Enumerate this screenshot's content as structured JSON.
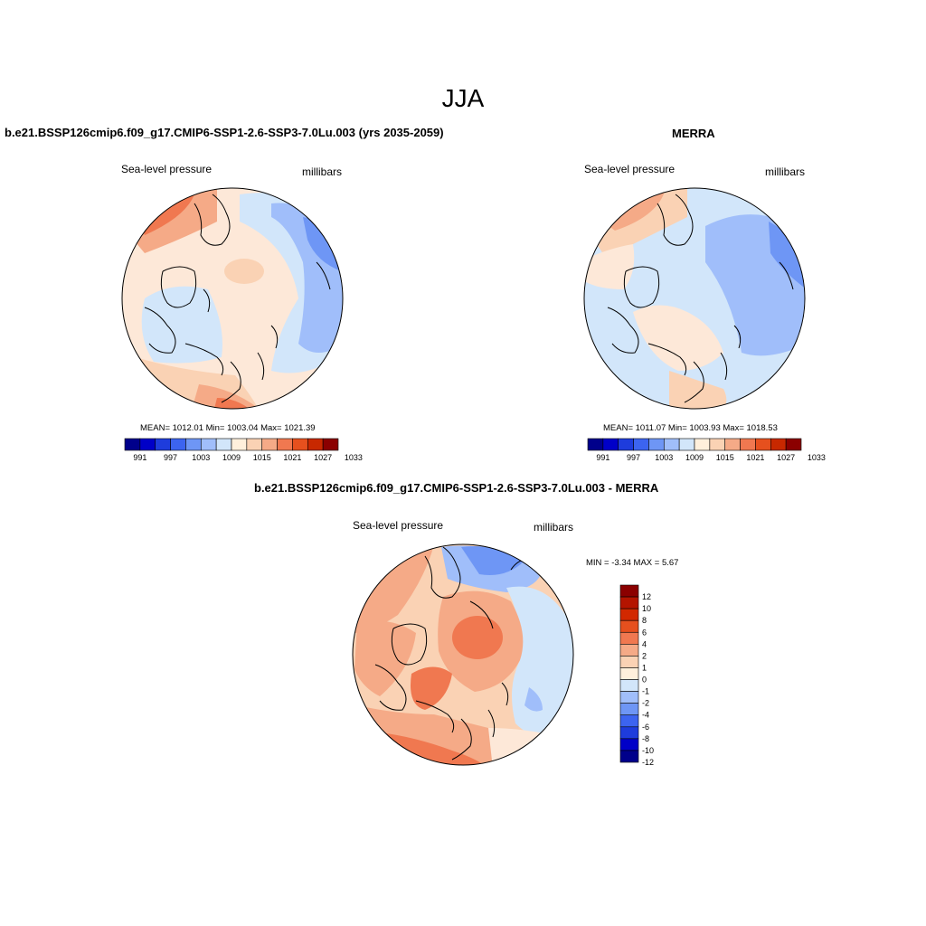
{
  "figure": {
    "title": "JJA",
    "panels": [
      {
        "title": "b.e21.BSSP126cmip6.f09_g17.CMIP6-SSP1-2.6-SSP3-7.0Lu.003 (yrs 2035-2059)",
        "left_label": "Sea-level pressure",
        "right_label": "millibars",
        "stats": "MEAN= 1012.01  Min= 1003.04  Max= 1021.39",
        "colorbar_ticks": [
          "991",
          "997",
          "1003",
          "1009",
          "1015",
          "1021",
          "1027",
          "1033"
        ]
      },
      {
        "title": "MERRA",
        "left_label": "Sea-level pressure",
        "right_label": "millibars",
        "stats": "MEAN= 1011.07  Min= 1003.93  Max= 1018.53",
        "colorbar_ticks": [
          "991",
          "997",
          "1003",
          "1009",
          "1015",
          "1021",
          "1027",
          "1033"
        ]
      },
      {
        "title": "b.e21.BSSP126cmip6.f09_g17.CMIP6-SSP1-2.6-SSP3-7.0Lu.003 - MERRA",
        "left_label": "Sea-level pressure",
        "right_label": "millibars",
        "stats": "MIN =  -3.34 MAX =   5.67",
        "colorbar_ticks": [
          "12",
          "10",
          "8",
          "6",
          "4",
          "2",
          "1",
          "0",
          "-1",
          "-2",
          "-4",
          "-6",
          "-8",
          "-10",
          "-12"
        ]
      }
    ],
    "colors": {
      "abs_colorbar": [
        "#00008b",
        "#0000c8",
        "#1e3cdc",
        "#3c64f0",
        "#6e96f5",
        "#a0befa",
        "#d2e6fa",
        "#fff0dc",
        "#fad2b4",
        "#f5aa87",
        "#f07850",
        "#e6501e",
        "#c82800",
        "#8b0000"
      ],
      "diff_colorbar": [
        "#8b0000",
        "#b41400",
        "#d22800",
        "#e6501e",
        "#f07850",
        "#f5aa87",
        "#fad2b4",
        "#fff0dc",
        "#d2e6fa",
        "#a0befa",
        "#6e96f5",
        "#3c64f0",
        "#1e3cdc",
        "#0000c8",
        "#00008b"
      ]
    }
  }
}
